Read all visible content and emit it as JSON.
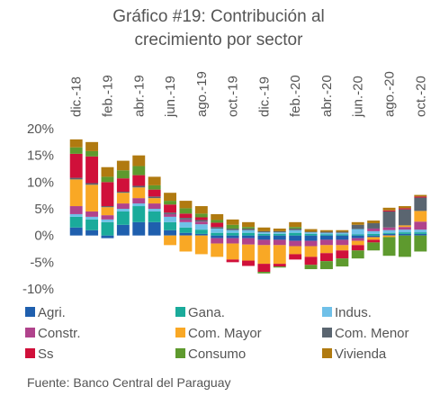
{
  "chart_data": {
    "type": "stacked_bar",
    "title": [
      "Gráfico #19: Contribución al",
      "crecimiento por sector"
    ],
    "source": "Fuente: Banco Central del Paraguay",
    "categories": [
      "dic.-18",
      null,
      "feb.-19",
      null,
      "abr.-19",
      null,
      "jun.-19",
      null,
      "ago.-19",
      null,
      "oct.-19",
      null,
      "dic.-19",
      null,
      "feb.-20",
      null,
      "abr.-20",
      null,
      "jun.-20",
      null,
      "ago.-20",
      null,
      "oct.-20"
    ],
    "ylim": [
      -10,
      20
    ],
    "yticks": [
      {
        "value": 20,
        "label": "20%"
      },
      {
        "value": 15,
        "label": "15%"
      },
      {
        "value": 10,
        "label": "10%"
      },
      {
        "value": 5,
        "label": "5%"
      },
      {
        "value": 0,
        "label": "0%"
      },
      {
        "value": -5,
        "label": "-5%"
      },
      {
        "value": -10,
        "label": "-10%"
      }
    ],
    "grid": false,
    "series": [
      {
        "name": "Agri.",
        "color": "#1f5fae",
        "values": [
          1.5,
          1,
          -0.5,
          2,
          2.5,
          2.5,
          1,
          0.5,
          0.3,
          -0.5,
          -0.5,
          -0.5,
          -0.8,
          -0.8,
          -1,
          -1,
          -0.8,
          -0.8,
          -0.5,
          -0.3,
          0.3,
          0.3,
          0.3
        ]
      },
      {
        "name": "Gana.",
        "color": "#1aab9b",
        "values": [
          2,
          2,
          2.5,
          2.5,
          3,
          2,
          1.5,
          1,
          0.8,
          0.5,
          0.5,
          0.5,
          0.3,
          0.3,
          0.5,
          0.3,
          0.2,
          0.2,
          0.2,
          0.3,
          0.2,
          0.3,
          0.3
        ]
      },
      {
        "name": "Indus.",
        "color": "#6fc0e8",
        "values": [
          0.5,
          0.5,
          0.5,
          0.5,
          0.5,
          0.5,
          1,
          1,
          1,
          0.8,
          0.5,
          0.5,
          0.3,
          0.3,
          0.5,
          0.3,
          0.3,
          0.3,
          1,
          0.5,
          0.5,
          0.5,
          0.5
        ]
      },
      {
        "name": "Constr.",
        "color": "#b0438c",
        "values": [
          1.5,
          1,
          0.8,
          1,
          1,
          1,
          0.5,
          0.5,
          0.5,
          -1,
          -1,
          -1.2,
          -1,
          -1,
          -1,
          -1,
          -1,
          -1,
          -0.5,
          0.5,
          0.5,
          0.5,
          1.5
        ]
      },
      {
        "name": "Com. Mayor",
        "color": "#f9a825",
        "values": [
          5,
          5,
          1.5,
          2,
          2,
          1,
          -1.8,
          -3,
          -3.5,
          -2.5,
          -3,
          -3,
          -3.5,
          -3.5,
          -1.5,
          -2,
          -1.5,
          -1,
          -0.8,
          -0.5,
          -0.3,
          0.3,
          2
        ]
      },
      {
        "name": "Com. Menor",
        "color": "#5a6570",
        "values": [
          0.3,
          0.3,
          0.2,
          0.2,
          0.3,
          0.3,
          0.3,
          0.3,
          0.3,
          0.3,
          0.3,
          0.3,
          0.2,
          0.2,
          0.3,
          0.1,
          0.2,
          0.2,
          0.8,
          1,
          3,
          3,
          2.5
        ]
      },
      {
        "name": "Ss",
        "color": "#d0103a",
        "values": [
          4.5,
          5,
          4.5,
          2.5,
          2,
          1.3,
          1.5,
          0.8,
          0.5,
          0.8,
          -0.5,
          -1,
          -1.5,
          -0.5,
          -1,
          -1.5,
          -1.5,
          -1.5,
          -1,
          -0.5,
          0.2,
          0.2,
          0.2
        ]
      },
      {
        "name": "Consumo",
        "color": "#5e9a2e",
        "values": [
          1.2,
          1,
          1,
          1.5,
          1.7,
          0.8,
          0.7,
          1,
          0.7,
          0.5,
          0.7,
          0.3,
          -0.3,
          -0.2,
          0.3,
          -0.8,
          -1.5,
          -1.5,
          -1.5,
          -1.5,
          -3.5,
          -4,
          -3
        ]
      },
      {
        "name": "Vivienda",
        "color": "#b07a10",
        "values": [
          1.5,
          1.7,
          1.8,
          1.8,
          2,
          1.6,
          1.5,
          1.4,
          1.4,
          1.1,
          1,
          0.9,
          0.7,
          0.5,
          0.9,
          0.5,
          0.3,
          0.3,
          0.5,
          0.5,
          0.5,
          0.4,
          0.3
        ]
      }
    ]
  }
}
